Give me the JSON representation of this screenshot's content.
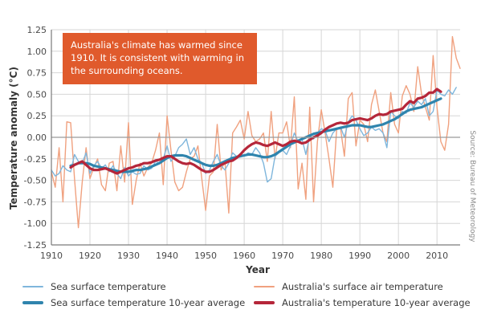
{
  "annotation": "Australia's climate has warmed since 1910. It is consistent with warming in the surrounding oceans.",
  "source_note": "Source: Bureau of Meteorology",
  "chart_data": {
    "type": "line",
    "xlabel": "Year",
    "ylabel": "Temperature anomaly (°C)",
    "xlim": [
      1910,
      2016
    ],
    "ylim": [
      -1.25,
      1.25
    ],
    "xticks": [
      1910,
      1920,
      1930,
      1940,
      1950,
      1960,
      1970,
      1980,
      1990,
      2000,
      2010
    ],
    "yticks": [
      1.25,
      1.0,
      0.75,
      0.5,
      0.25,
      0.0,
      -0.25,
      -0.5,
      -0.75,
      -1.0,
      -1.25
    ],
    "ytick_labels": [
      "1.25",
      "1.00",
      "0.75",
      "0.50",
      "0.25",
      "0.00",
      "-0.25",
      "-0.50",
      "-0.75",
      "-1.00",
      "-1.25"
    ],
    "grid": true,
    "legend_position": "bottom",
    "colors": {
      "sst": "#7fb6dc",
      "sst_avg": "#2f84ad",
      "air": "#f0a17f",
      "air_avg": "#b5263a"
    },
    "series": [
      {
        "name": "Sea surface temperature",
        "style": "thin",
        "x": [
          1910,
          1911,
          1912,
          1913,
          1914,
          1915,
          1916,
          1917,
          1918,
          1919,
          1920,
          1921,
          1922,
          1923,
          1924,
          1925,
          1926,
          1927,
          1928,
          1929,
          1930,
          1931,
          1932,
          1933,
          1934,
          1935,
          1936,
          1937,
          1938,
          1939,
          1940,
          1941,
          1942,
          1943,
          1944,
          1945,
          1946,
          1947,
          1948,
          1949,
          1950,
          1951,
          1952,
          1953,
          1954,
          1955,
          1956,
          1957,
          1958,
          1959,
          1960,
          1961,
          1962,
          1963,
          1964,
          1965,
          1966,
          1967,
          1968,
          1969,
          1970,
          1971,
          1972,
          1973,
          1974,
          1975,
          1976,
          1977,
          1978,
          1979,
          1980,
          1981,
          1982,
          1983,
          1984,
          1985,
          1986,
          1987,
          1988,
          1989,
          1990,
          1991,
          1992,
          1993,
          1994,
          1995,
          1996,
          1997,
          1998,
          1999,
          2000,
          2001,
          2002,
          2003,
          2004,
          2005,
          2006,
          2007,
          2008,
          2009,
          2010,
          2011,
          2012,
          2013,
          2014,
          2015
        ],
        "values": [
          -0.38,
          -0.45,
          -0.42,
          -0.33,
          -0.38,
          -0.4,
          -0.2,
          -0.28,
          -0.3,
          -0.18,
          -0.42,
          -0.33,
          -0.28,
          -0.36,
          -0.32,
          -0.4,
          -0.33,
          -0.42,
          -0.48,
          -0.35,
          -0.45,
          -0.4,
          -0.43,
          -0.42,
          -0.33,
          -0.38,
          -0.36,
          -0.28,
          -0.3,
          -0.25,
          -0.1,
          -0.28,
          -0.22,
          -0.12,
          -0.08,
          -0.02,
          -0.2,
          -0.12,
          -0.25,
          -0.3,
          -0.42,
          -0.38,
          -0.28,
          -0.2,
          -0.33,
          -0.38,
          -0.3,
          -0.18,
          -0.22,
          -0.2,
          -0.22,
          -0.18,
          -0.2,
          -0.12,
          -0.18,
          -0.3,
          -0.52,
          -0.48,
          -0.22,
          -0.18,
          -0.15,
          -0.2,
          -0.1,
          0.05,
          -0.05,
          -0.02,
          -0.2,
          0.02,
          -0.02,
          0.05,
          0.1,
          0.08,
          -0.05,
          0.05,
          0.1,
          0.12,
          0.0,
          0.18,
          0.25,
          0.2,
          0.1,
          0.02,
          0.05,
          0.12,
          0.08,
          0.1,
          0.05,
          -0.12,
          0.3,
          0.25,
          0.22,
          0.3,
          0.28,
          0.4,
          0.35,
          0.42,
          0.38,
          0.45,
          0.25,
          0.3,
          0.55,
          0.5,
          0.48,
          0.55,
          0.5,
          0.58
        ]
      },
      {
        "name": "Australia's surface air temperature",
        "style": "thin",
        "x": [
          1910,
          1911,
          1912,
          1913,
          1914,
          1915,
          1916,
          1917,
          1918,
          1919,
          1920,
          1921,
          1922,
          1923,
          1924,
          1925,
          1926,
          1927,
          1928,
          1929,
          1930,
          1931,
          1932,
          1933,
          1934,
          1935,
          1936,
          1937,
          1938,
          1939,
          1940,
          1941,
          1942,
          1943,
          1944,
          1945,
          1946,
          1947,
          1948,
          1949,
          1950,
          1951,
          1952,
          1953,
          1954,
          1955,
          1956,
          1957,
          1958,
          1959,
          1960,
          1961,
          1962,
          1963,
          1964,
          1965,
          1966,
          1967,
          1968,
          1969,
          1970,
          1971,
          1972,
          1973,
          1974,
          1975,
          1976,
          1977,
          1978,
          1979,
          1980,
          1981,
          1982,
          1983,
          1984,
          1985,
          1986,
          1987,
          1988,
          1989,
          1990,
          1991,
          1992,
          1993,
          1994,
          1995,
          1996,
          1997,
          1998,
          1999,
          2000,
          2001,
          2002,
          2003,
          2004,
          2005,
          2006,
          2007,
          2008,
          2009,
          2010,
          2011,
          2012,
          2013,
          2014,
          2015,
          2016
        ],
        "values": [
          -0.4,
          -0.58,
          -0.12,
          -0.75,
          0.18,
          0.17,
          -0.48,
          -1.05,
          -0.52,
          -0.12,
          -0.48,
          -0.35,
          -0.25,
          -0.55,
          -0.62,
          -0.3,
          -0.28,
          -0.62,
          -0.1,
          -0.52,
          0.17,
          -0.78,
          -0.5,
          -0.3,
          -0.45,
          -0.35,
          -0.3,
          -0.15,
          0.05,
          -0.55,
          0.25,
          -0.15,
          -0.52,
          -0.62,
          -0.58,
          -0.4,
          -0.25,
          -0.22,
          -0.1,
          -0.48,
          -0.85,
          -0.45,
          -0.4,
          0.15,
          -0.38,
          -0.28,
          -0.88,
          0.05,
          0.12,
          0.2,
          -0.02,
          0.3,
          0.02,
          -0.05,
          -0.02,
          0.05,
          -0.28,
          0.3,
          -0.25,
          0.05,
          0.05,
          0.18,
          -0.12,
          0.47,
          -0.6,
          -0.3,
          -0.72,
          0.35,
          -0.75,
          -0.05,
          0.32,
          0.05,
          -0.25,
          -0.58,
          0.1,
          0.1,
          -0.22,
          0.45,
          0.52,
          -0.1,
          0.2,
          0.15,
          -0.05,
          0.38,
          0.55,
          0.3,
          0.05,
          -0.05,
          0.52,
          0.15,
          0.05,
          0.48,
          0.6,
          0.5,
          0.3,
          0.82,
          0.5,
          0.35,
          0.2,
          0.95,
          0.35,
          -0.05,
          -0.15,
          0.15,
          1.17,
          0.92,
          0.8
        ]
      },
      {
        "name": "Sea surface temperature 10-year average",
        "style": "thick",
        "x": [
          1915,
          1916,
          1917,
          1918,
          1919,
          1920,
          1921,
          1922,
          1923,
          1924,
          1925,
          1926,
          1927,
          1928,
          1929,
          1930,
          1931,
          1932,
          1933,
          1934,
          1935,
          1936,
          1937,
          1938,
          1939,
          1940,
          1941,
          1942,
          1943,
          1944,
          1945,
          1946,
          1947,
          1948,
          1949,
          1950,
          1951,
          1952,
          1953,
          1954,
          1955,
          1956,
          1957,
          1958,
          1959,
          1960,
          1961,
          1962,
          1963,
          1964,
          1965,
          1966,
          1967,
          1968,
          1969,
          1970,
          1971,
          1972,
          1973,
          1974,
          1975,
          1976,
          1977,
          1978,
          1979,
          1980,
          1981,
          1982,
          1983,
          1984,
          1985,
          1986,
          1987,
          1988,
          1989,
          1990,
          1991,
          1992,
          1993,
          1994,
          1995,
          1996,
          1997,
          1998,
          1999,
          2000,
          2001,
          2002,
          2003,
          2004,
          2005,
          2006,
          2007,
          2008,
          2009,
          2010,
          2011
        ],
        "values": [
          -0.33,
          -0.32,
          -0.3,
          -0.3,
          -0.3,
          -0.31,
          -0.33,
          -0.34,
          -0.35,
          -0.36,
          -0.37,
          -0.38,
          -0.39,
          -0.4,
          -0.4,
          -0.4,
          -0.39,
          -0.38,
          -0.38,
          -0.37,
          -0.36,
          -0.34,
          -0.32,
          -0.3,
          -0.27,
          -0.24,
          -0.22,
          -0.21,
          -0.21,
          -0.21,
          -0.22,
          -0.24,
          -0.26,
          -0.28,
          -0.3,
          -0.32,
          -0.33,
          -0.33,
          -0.32,
          -0.3,
          -0.28,
          -0.26,
          -0.24,
          -0.23,
          -0.22,
          -0.21,
          -0.2,
          -0.2,
          -0.21,
          -0.22,
          -0.23,
          -0.23,
          -0.22,
          -0.2,
          -0.17,
          -0.14,
          -0.11,
          -0.08,
          -0.06,
          -0.04,
          -0.02,
          0.0,
          0.02,
          0.04,
          0.05,
          0.06,
          0.07,
          0.08,
          0.09,
          0.1,
          0.11,
          0.12,
          0.13,
          0.14,
          0.14,
          0.14,
          0.13,
          0.12,
          0.12,
          0.13,
          0.14,
          0.15,
          0.17,
          0.19,
          0.21,
          0.24,
          0.27,
          0.3,
          0.32,
          0.33,
          0.34,
          0.35,
          0.37,
          0.39,
          0.41,
          0.43,
          0.45
        ]
      },
      {
        "name": "Australia's temperature 10-year average",
        "style": "thick",
        "x": [
          1915,
          1916,
          1917,
          1918,
          1919,
          1920,
          1921,
          1922,
          1923,
          1924,
          1925,
          1926,
          1927,
          1928,
          1929,
          1930,
          1931,
          1932,
          1933,
          1934,
          1935,
          1936,
          1937,
          1938,
          1939,
          1940,
          1941,
          1942,
          1943,
          1944,
          1945,
          1946,
          1947,
          1948,
          1949,
          1950,
          1951,
          1952,
          1953,
          1954,
          1955,
          1956,
          1957,
          1958,
          1959,
          1960,
          1961,
          1962,
          1963,
          1964,
          1965,
          1966,
          1967,
          1968,
          1969,
          1970,
          1971,
          1972,
          1973,
          1974,
          1975,
          1976,
          1977,
          1978,
          1979,
          1980,
          1981,
          1982,
          1983,
          1984,
          1985,
          1986,
          1987,
          1988,
          1989,
          1990,
          1991,
          1992,
          1993,
          1994,
          1995,
          1996,
          1997,
          1998,
          1999,
          2000,
          2001,
          2002,
          2003,
          2004,
          2005,
          2006,
          2007,
          2008,
          2009,
          2010,
          2011
        ],
        "values": [
          -0.35,
          -0.32,
          -0.3,
          -0.28,
          -0.32,
          -0.36,
          -0.38,
          -0.38,
          -0.37,
          -0.36,
          -0.38,
          -0.4,
          -0.42,
          -0.4,
          -0.38,
          -0.36,
          -0.35,
          -0.33,
          -0.32,
          -0.3,
          -0.3,
          -0.29,
          -0.27,
          -0.26,
          -0.24,
          -0.22,
          -0.22,
          -0.25,
          -0.28,
          -0.3,
          -0.31,
          -0.3,
          -0.32,
          -0.35,
          -0.38,
          -0.4,
          -0.4,
          -0.38,
          -0.35,
          -0.32,
          -0.3,
          -0.28,
          -0.27,
          -0.24,
          -0.2,
          -0.15,
          -0.11,
          -0.08,
          -0.06,
          -0.07,
          -0.09,
          -0.1,
          -0.08,
          -0.06,
          -0.08,
          -0.1,
          -0.08,
          -0.05,
          -0.04,
          -0.05,
          -0.07,
          -0.06,
          -0.03,
          0.0,
          0.02,
          0.05,
          0.09,
          0.12,
          0.14,
          0.16,
          0.17,
          0.16,
          0.17,
          0.2,
          0.21,
          0.22,
          0.21,
          0.2,
          0.22,
          0.25,
          0.27,
          0.26,
          0.27,
          0.3,
          0.31,
          0.32,
          0.33,
          0.38,
          0.42,
          0.4,
          0.45,
          0.46,
          0.48,
          0.52,
          0.52,
          0.56,
          0.53
        ]
      }
    ]
  }
}
